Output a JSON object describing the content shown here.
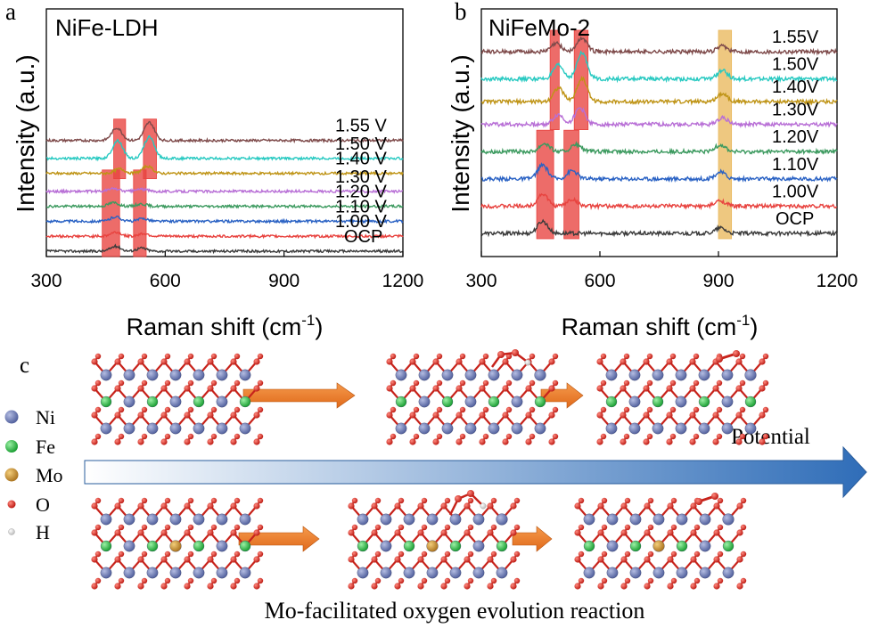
{
  "panel_letters": {
    "a": "a",
    "b": "b",
    "c": "c"
  },
  "chart_data": [
    {
      "type": "line",
      "panel": "a",
      "title": "NiFe-LDH",
      "xlabel": "Raman shift (cm",
      "xlabel_sup": "-1",
      "xlabel_close": ")",
      "ylabel": "Intensity (a.u.)",
      "xlim": [
        300,
        1200
      ],
      "xticks": [
        300,
        600,
        900,
        1200
      ],
      "yticks_shown": false,
      "series": [
        {
          "name": "OCP",
          "label": "OCP",
          "offset": 0,
          "color": "#3b3b3b",
          "peaks": [
            [
              475,
              0.55
            ],
            [
              540,
              0.35
            ]
          ]
        },
        {
          "name": "1.00 V",
          "label": "1.00 V",
          "offset": 1,
          "color": "#e8433f",
          "peaks": [
            [
              475,
              0.45
            ],
            [
              545,
              0.3
            ]
          ]
        },
        {
          "name": "1.10 V",
          "label": "1.10 V",
          "offset": 2,
          "color": "#2a62c4",
          "peaks": [
            [
              475,
              0.5
            ],
            [
              545,
              0.3
            ]
          ]
        },
        {
          "name": "1.20 V",
          "label": "1.20 V",
          "offset": 3,
          "color": "#3c9a5f",
          "peaks": [
            [
              470,
              0.4
            ],
            [
              540,
              0.25
            ]
          ]
        },
        {
          "name": "1.30 V",
          "label": "1.30 V",
          "offset": 4,
          "color": "#b86fd6",
          "peaks": [
            [
              470,
              0.3
            ],
            [
              540,
              0.25
            ]
          ]
        },
        {
          "name": "1.40 V",
          "label": "1.40 V",
          "offset": 5.2,
          "color": "#bf9416",
          "peaks": [
            [
              485,
              0.5
            ],
            [
              555,
              0.8
            ]
          ]
        },
        {
          "name": "1.50 V",
          "label": "1.50 V",
          "offset": 6.2,
          "color": "#27c9c1",
          "peaks": [
            [
              480,
              2.0
            ],
            [
              560,
              2.4
            ]
          ]
        },
        {
          "name": "1.55 V",
          "label": "1.55 V",
          "offset": 7.4,
          "color": "#7e4a4a",
          "peaks": [
            [
              478,
              1.4
            ],
            [
              560,
              2.0
            ]
          ]
        }
      ],
      "highlight_bands": [
        {
          "x": [
            441,
            485
          ],
          "series_range": [
            0,
            4
          ],
          "color": "#e8433f"
        },
        {
          "x": [
            520,
            552
          ],
          "series_range": [
            0,
            4
          ],
          "color": "#e8433f"
        },
        {
          "x": [
            470,
            500
          ],
          "series_range": [
            5,
            7
          ],
          "color": "#e8433f"
        },
        {
          "x": [
            545,
            578
          ],
          "series_range": [
            5,
            7
          ],
          "color": "#e8433f"
        }
      ]
    },
    {
      "type": "line",
      "panel": "b",
      "title": "NiFeMo-2",
      "xlabel": "Raman shift (cm",
      "xlabel_sup": "-1",
      "xlabel_close": ")",
      "ylabel": "Intensity (a.u.)",
      "xlim": [
        300,
        1200
      ],
      "xticks": [
        300,
        600,
        900,
        1200
      ],
      "yticks_shown": false,
      "series": [
        {
          "name": "OCP",
          "label": "OCP",
          "offset": 0,
          "color": "#3b3b3b",
          "peaks": [
            [
              455,
              0.9
            ],
            [
              905,
              0.4
            ]
          ]
        },
        {
          "name": "1.00V",
          "label": "1.00V",
          "offset": 1.2,
          "color": "#e8433f",
          "peaks": [
            [
              455,
              0.9
            ],
            [
              530,
              0.5
            ],
            [
              905,
              0.4
            ]
          ]
        },
        {
          "name": "1.10V",
          "label": "1.10V",
          "offset": 2.4,
          "color": "#2a62c4",
          "peaks": [
            [
              455,
              1.0
            ],
            [
              530,
              0.6
            ],
            [
              905,
              0.5
            ]
          ]
        },
        {
          "name": "1.20V",
          "label": "1.20V",
          "offset": 3.6,
          "color": "#3c9a5f",
          "peaks": [
            [
              460,
              0.6
            ],
            [
              540,
              0.5
            ],
            [
              905,
              0.5
            ]
          ]
        },
        {
          "name": "1.30V",
          "label": "1.30V",
          "offset": 4.8,
          "color": "#b86fd6",
          "peaks": [
            [
              495,
              0.7
            ],
            [
              550,
              1.2
            ],
            [
              910,
              0.5
            ]
          ]
        },
        {
          "name": "1.40V",
          "label": "1.40V",
          "offset": 5.8,
          "color": "#bf9416",
          "peaks": [
            [
              495,
              1.0
            ],
            [
              555,
              1.7
            ],
            [
              910,
              0.6
            ]
          ]
        },
        {
          "name": "1.50V",
          "label": "1.50V",
          "offset": 6.8,
          "color": "#27c9c1",
          "peaks": [
            [
              495,
              1.0
            ],
            [
              555,
              1.9
            ],
            [
              910,
              0.6
            ]
          ]
        },
        {
          "name": "1.55V",
          "label": "1.55V",
          "offset": 8.0,
          "color": "#7e4a4a",
          "peaks": [
            [
              490,
              0.6
            ],
            [
              555,
              1.0
            ],
            [
              910,
              0.4
            ]
          ]
        }
      ],
      "highlight_bands": [
        {
          "x": [
            440,
            483
          ],
          "series_range": [
            0,
            3
          ],
          "color": "#e8433f"
        },
        {
          "x": [
            509,
            547
          ],
          "series_range": [
            0,
            3
          ],
          "color": "#e8433f"
        },
        {
          "x": [
            474,
            497
          ],
          "series_range": [
            4,
            7
          ],
          "color": "#e8433f"
        },
        {
          "x": [
            535,
            570
          ],
          "series_range": [
            4,
            7
          ],
          "color": "#e8433f"
        },
        {
          "x": [
            900,
            933
          ],
          "series_range": [
            0,
            7
          ],
          "color": "#e9b85c"
        }
      ]
    }
  ],
  "schematic": {
    "legend": [
      {
        "label": "Ni",
        "color": "#6a7ab6"
      },
      {
        "label": "Fe",
        "color": "#2fb84a"
      },
      {
        "label": "Mo",
        "color": "#c98b2a"
      },
      {
        "label": "O",
        "color": "#d9241c"
      },
      {
        "label": "H",
        "color": "#ececec"
      }
    ],
    "potential_label": "Potential",
    "caption": "Mo-facilitated oxygen evolution reaction"
  },
  "colors": {
    "arrow_orange": "#f07c24",
    "potential_blue": "#2f6db8"
  }
}
